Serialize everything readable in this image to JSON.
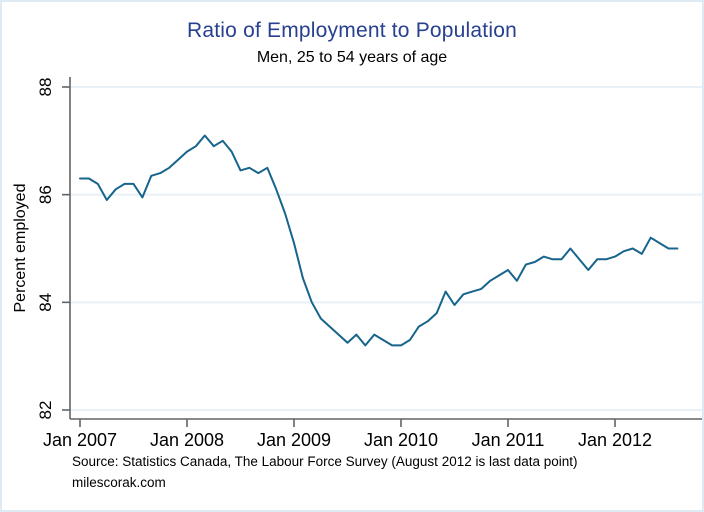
{
  "page": {
    "title": "Ratio of Employment to Population",
    "subtitle": "Men, 25 to 54 years of age",
    "note_line1": "Source: Statistics Canada, The Labour Force Survey (August 2012 is last data point)",
    "note_line2": "milescorak.com"
  },
  "colors": {
    "line": "#17648c",
    "title": "#27408f",
    "grid": "#e9f1f8",
    "axis": "#646464",
    "canvas_border": "#dfeaf3",
    "text": "#000000"
  },
  "chart_data": {
    "type": "line",
    "title": "Ratio of Employment to Population",
    "subtitle": "Men, 25 to 54 years of age",
    "xlabel": "",
    "ylabel": "Percent employed",
    "ylim": [
      82,
      88
    ],
    "yticks": [
      82,
      84,
      86,
      88
    ],
    "xtick_labels": [
      "Jan 2007",
      "Jan 2008",
      "Jan 2009",
      "Jan 2010",
      "Jan 2011",
      "Jan 2012"
    ],
    "grid": true,
    "legend": "none",
    "x_start": "2007-01",
    "x_end": "2012-08",
    "x_freq": "monthly",
    "series": [
      {
        "name": "Employment to population ratio, men 25-54 (percent employed)",
        "values": [
          86.3,
          86.3,
          86.2,
          85.9,
          86.1,
          86.2,
          86.2,
          85.95,
          86.35,
          86.4,
          86.5,
          86.65,
          86.8,
          86.9,
          87.1,
          86.9,
          87.0,
          86.8,
          86.45,
          86.5,
          86.4,
          86.5,
          86.1,
          85.65,
          85.1,
          84.45,
          84.0,
          83.7,
          83.55,
          83.4,
          83.25,
          83.4,
          83.2,
          83.4,
          83.3,
          83.2,
          83.2,
          83.3,
          83.55,
          83.65,
          83.8,
          84.2,
          83.95,
          84.15,
          84.2,
          84.25,
          84.4,
          84.5,
          84.6,
          84.4,
          84.7,
          84.75,
          84.85,
          84.8,
          84.8,
          85.0,
          84.8,
          84.6,
          84.8,
          84.8,
          84.85,
          84.95,
          85.0,
          84.9,
          85.2,
          85.1,
          85.0,
          85.0
        ]
      }
    ],
    "source_note": "Source: Statistics Canada, The Labour Force Survey (August 2012 is last data point)",
    "attribution": "milescorak.com"
  }
}
